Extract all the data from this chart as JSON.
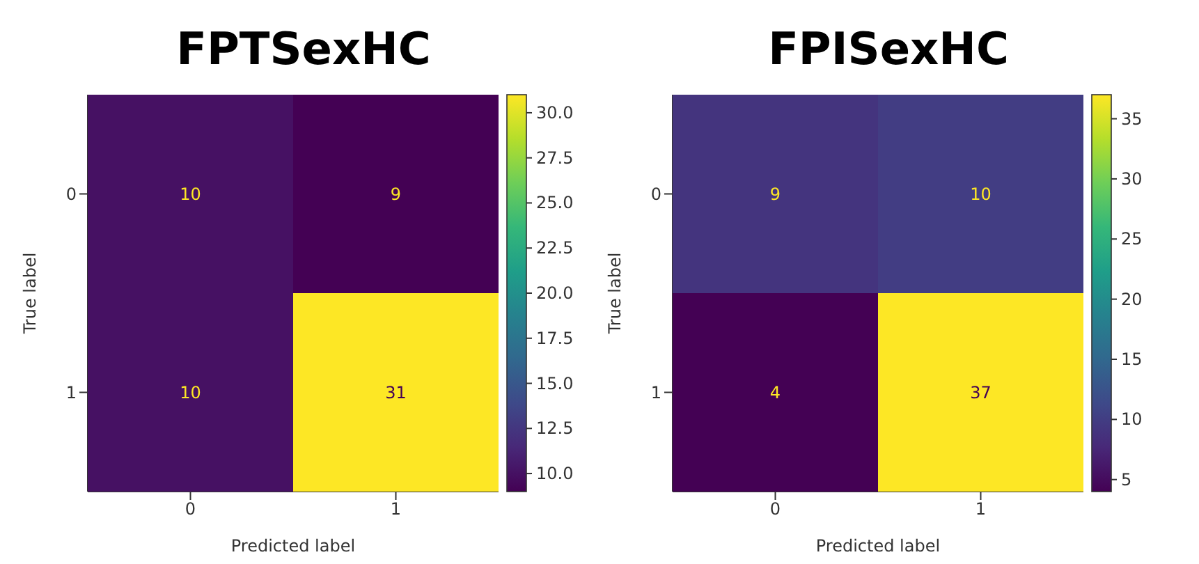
{
  "chart_data": [
    {
      "type": "heatmap",
      "title": "FPTSexHC",
      "xlabel": "Predicted label",
      "ylabel": "True label",
      "categories": [
        "0",
        "1"
      ],
      "y_categories": [
        "0",
        "1"
      ],
      "cells": [
        [
          10,
          9
        ],
        [
          10,
          31
        ]
      ],
      "data_labels": true,
      "clim": [
        9,
        31
      ],
      "cticks": [
        {
          "value": 10,
          "label": "10.0"
        },
        {
          "value": 12.5,
          "label": "12.5"
        },
        {
          "value": 15,
          "label": "15.0"
        },
        {
          "value": 17.5,
          "label": "17.5"
        },
        {
          "value": 20,
          "label": "20.0"
        },
        {
          "value": 22.5,
          "label": "22.5"
        },
        {
          "value": 25,
          "label": "25.0"
        },
        {
          "value": 27.5,
          "label": "27.5"
        },
        {
          "value": 30,
          "label": "30.0"
        }
      ]
    },
    {
      "type": "heatmap",
      "title": "FPISexHC",
      "xlabel": "Predicted label",
      "ylabel": "True label",
      "categories": [
        "0",
        "1"
      ],
      "y_categories": [
        "0",
        "1"
      ],
      "cells": [
        [
          9,
          10
        ],
        [
          4,
          37
        ]
      ],
      "data_labels": true,
      "clim": [
        4,
        37
      ],
      "cticks": [
        5,
        10,
        15,
        20,
        25,
        30,
        35
      ]
    }
  ]
}
